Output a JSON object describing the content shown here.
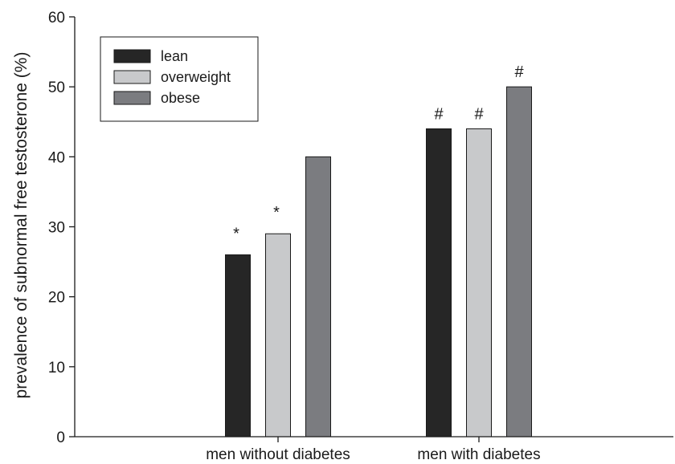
{
  "chart_data": {
    "type": "bar",
    "title": "",
    "xlabel": "",
    "ylabel": "prevalence of subnormal free testosterone (%)",
    "ylim": [
      0,
      60
    ],
    "yticks": [
      0,
      10,
      20,
      30,
      40,
      50,
      60
    ],
    "categories": [
      "men without diabetes",
      "men with diabetes"
    ],
    "series": [
      {
        "name": "lean",
        "color": "#262626",
        "values": [
          26,
          44
        ],
        "annotations": [
          "*",
          "#"
        ]
      },
      {
        "name": "overweight",
        "color": "#c8c9cb",
        "values": [
          29,
          44
        ],
        "annotations": [
          "*",
          "#"
        ]
      },
      {
        "name": "obese",
        "color": "#7b7c80",
        "values": [
          40,
          50
        ],
        "annotations": [
          "",
          "#"
        ]
      }
    ],
    "legend": {
      "position": "top-left",
      "boxed": true
    },
    "grid": false
  }
}
